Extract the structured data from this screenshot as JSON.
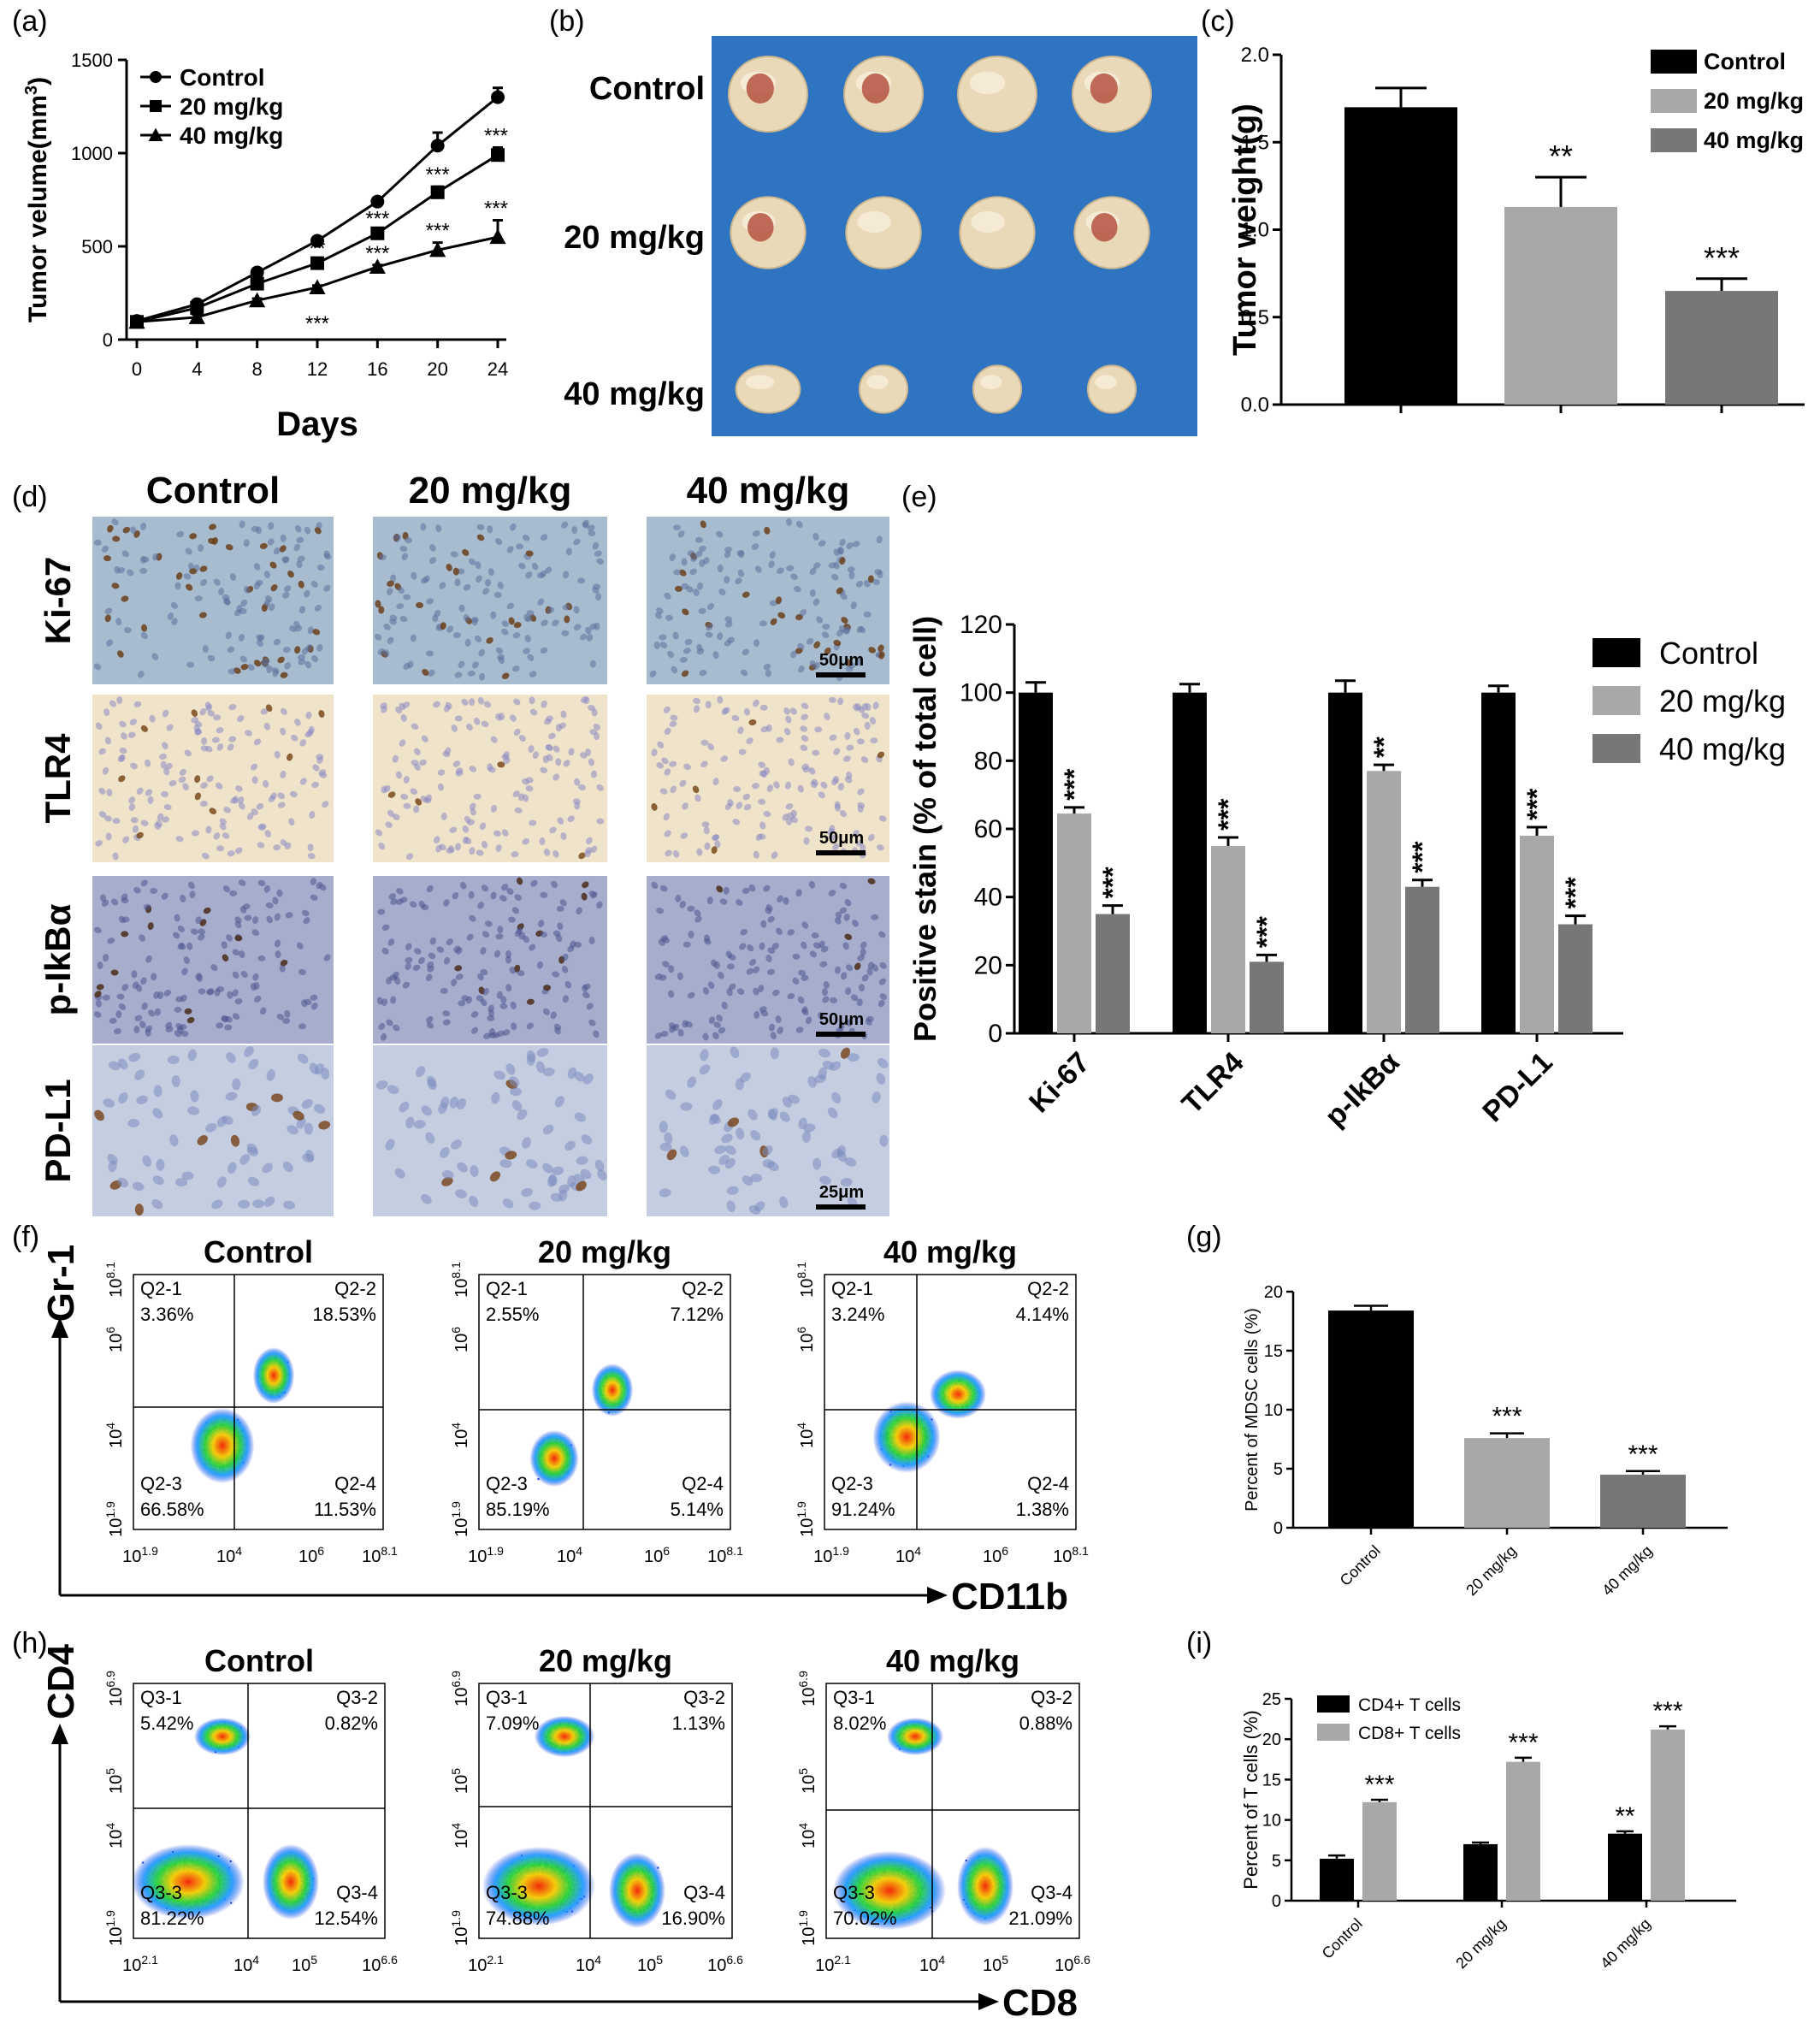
{
  "panel_letters": {
    "a": "(a)",
    "b": "(b)",
    "c": "(c)",
    "d": "(d)",
    "e": "(e)",
    "f": "(f)",
    "g": "(g)",
    "h": "(h)",
    "i": "(i)"
  },
  "colors": {
    "control": "#000000",
    "dose20": "#a8a8a8",
    "dose40": "#777777",
    "photo_bg": "#2f74c0"
  },
  "groups": [
    "Control",
    "20 mg/kg",
    "40 mg/kg"
  ],
  "panel_b": {
    "row_labels": [
      "Control",
      "20 mg/kg",
      "40 mg/kg"
    ]
  },
  "panel_d": {
    "col_labels": [
      "Control",
      "20 mg/kg",
      "40 mg/kg"
    ],
    "row_labels": [
      "Ki-67",
      "TLR4",
      "p-IkBα",
      "PD-L1"
    ],
    "scale_bars": [
      "50μm",
      "50μm",
      "50μm",
      "25μm"
    ]
  },
  "panel_f": {
    "y_axis": "Gr-1",
    "x_axis": "CD11b",
    "titles": [
      "Control",
      "20 mg/kg",
      "40 mg/kg"
    ],
    "x_ticks": [
      {
        "b": "10",
        "e": "1.9"
      },
      {
        "b": "10",
        "e": "4"
      },
      {
        "b": "10",
        "e": "6"
      },
      {
        "b": "10",
        "e": "8.1"
      }
    ],
    "y_ticks": [
      {
        "b": "10",
        "e": "1.9"
      },
      {
        "b": "10",
        "e": "4"
      },
      {
        "b": "10",
        "e": "6"
      },
      {
        "b": "10",
        "e": "8.1"
      }
    ],
    "plots": [
      {
        "q": [
          [
            "Q2-1",
            "3.36%"
          ],
          [
            "Q2-2",
            "18.53%"
          ],
          [
            "Q2-3",
            "66.58%"
          ],
          [
            "Q2-4",
            "11.53%"
          ]
        ]
      },
      {
        "q": [
          [
            "Q2-1",
            "2.55%"
          ],
          [
            "Q2-2",
            "7.12%"
          ],
          [
            "Q2-3",
            "85.19%"
          ],
          [
            "Q2-4",
            "5.14%"
          ]
        ]
      },
      {
        "q": [
          [
            "Q2-1",
            "3.24%"
          ],
          [
            "Q2-2",
            "4.14%"
          ],
          [
            "Q2-3",
            "91.24%"
          ],
          [
            "Q2-4",
            "1.38%"
          ]
        ]
      }
    ]
  },
  "panel_h": {
    "y_axis": "CD4",
    "x_axis": "CD8",
    "titles": [
      "Control",
      "20 mg/kg",
      "40 mg/kg"
    ],
    "x_ticks": [
      {
        "b": "10",
        "e": "2.1"
      },
      {
        "b": "10",
        "e": "4"
      },
      {
        "b": "10",
        "e": "5"
      },
      {
        "b": "10",
        "e": "6.6"
      }
    ],
    "y_ticks": [
      {
        "b": "10",
        "e": "1.9"
      },
      {
        "b": "10",
        "e": "4"
      },
      {
        "b": "10",
        "e": "5"
      },
      {
        "b": "10",
        "e": "6.9"
      }
    ],
    "plots": [
      {
        "q": [
          [
            "Q3-1",
            "5.42%"
          ],
          [
            "Q3-2",
            "0.82%"
          ],
          [
            "Q3-3",
            "81.22%"
          ],
          [
            "Q3-4",
            "12.54%"
          ]
        ]
      },
      {
        "q": [
          [
            "Q3-1",
            "7.09%"
          ],
          [
            "Q3-2",
            "1.13%"
          ],
          [
            "Q3-3",
            "74.88%"
          ],
          [
            "Q3-4",
            "16.90%"
          ]
        ]
      },
      {
        "q": [
          [
            "Q3-1",
            "8.02%"
          ],
          [
            "Q3-2",
            "0.88%"
          ],
          [
            "Q3-3",
            "70.02%"
          ],
          [
            "Q3-4",
            "21.09%"
          ]
        ]
      }
    ]
  },
  "chart_data": [
    {
      "panel": "a",
      "type": "line",
      "xlabel": "Days",
      "ylabel_main": "Tumor velume(mm",
      "ylabel_sup": "3",
      "ylabel_end": ")",
      "x": [
        0,
        4,
        8,
        12,
        16,
        20,
        24
      ],
      "xlim": [
        0,
        24
      ],
      "ylim": [
        0,
        1500
      ],
      "xticks": [
        0,
        4,
        8,
        12,
        16,
        20,
        24
      ],
      "yticks": [
        0,
        500,
        1000,
        1500
      ],
      "legend": "top-left",
      "series": [
        {
          "name": "Control",
          "marker": "circle",
          "values": [
            100,
            190,
            360,
            530,
            740,
            1040,
            1300
          ],
          "errors": [
            5,
            15,
            20,
            15,
            20,
            70,
            50
          ],
          "sig": [
            "",
            "",
            "",
            "",
            "",
            "",
            ""
          ]
        },
        {
          "name": "20 mg/kg",
          "marker": "square",
          "values": [
            95,
            170,
            300,
            410,
            570,
            790,
            990
          ],
          "errors": [
            5,
            10,
            15,
            15,
            15,
            30,
            40
          ],
          "sig": [
            "",
            "",
            "",
            "**",
            "***",
            "***",
            "***"
          ]
        },
        {
          "name": "40 mg/kg",
          "marker": "triangle",
          "values": [
            95,
            120,
            210,
            280,
            390,
            480,
            550
          ],
          "errors": [
            5,
            15,
            10,
            10,
            10,
            40,
            90
          ],
          "sig": [
            "",
            "",
            "",
            "***",
            "***",
            "***",
            "***"
          ]
        }
      ]
    },
    {
      "panel": "c",
      "type": "bar",
      "ylabel": "Tumor weight(g)",
      "ylim": [
        0,
        2.0
      ],
      "yticks": [
        "0.0",
        "0.5",
        "1.0",
        "1.5",
        "2.0"
      ],
      "legend": "top-right",
      "series": [
        {
          "name": "Control",
          "value": 1.7,
          "error": 0.11,
          "sig": ""
        },
        {
          "name": "20 mg/kg",
          "value": 1.13,
          "error": 0.17,
          "sig": "**"
        },
        {
          "name": "40 mg/kg",
          "value": 0.65,
          "error": 0.07,
          "sig": "***"
        }
      ]
    },
    {
      "panel": "e",
      "type": "bar",
      "ylabel": "Positive stain (% of total cell)",
      "categories": [
        "Ki-67",
        "TLR4",
        "p-IkBα",
        "PD-L1"
      ],
      "ylim": [
        0,
        120
      ],
      "yticks": [
        0,
        20,
        40,
        60,
        80,
        100,
        120
      ],
      "legend": "top-right",
      "series": [
        {
          "name": "Control",
          "values": [
            100,
            100,
            100,
            100
          ],
          "errors": [
            3,
            2.5,
            3.5,
            2
          ],
          "sig": [
            "",
            "",
            "",
            ""
          ]
        },
        {
          "name": "20 mg/kg",
          "values": [
            64.5,
            55,
            77,
            58
          ],
          "errors": [
            1.8,
            2.5,
            1.8,
            2.5
          ],
          "sig": [
            "***",
            "***",
            "**",
            "***"
          ]
        },
        {
          "name": "40 mg/kg",
          "values": [
            35,
            21,
            43,
            32
          ],
          "errors": [
            2.5,
            2,
            2,
            2.5
          ],
          "sig": [
            "***",
            "***",
            "***",
            "***"
          ]
        }
      ]
    },
    {
      "panel": "g",
      "type": "bar",
      "ylabel": "Percent of MDSC cells (%)",
      "categories": [
        "Control",
        "20 mg/kg",
        "40 mg/kg"
      ],
      "ylim": [
        0,
        20
      ],
      "yticks": [
        0,
        5,
        10,
        15,
        20
      ],
      "series": [
        {
          "name": "Control",
          "value": 18.4,
          "error": 0.4,
          "sig": ""
        },
        {
          "name": "20 mg/kg",
          "value": 7.6,
          "error": 0.4,
          "sig": "***"
        },
        {
          "name": "40 mg/kg",
          "value": 4.5,
          "error": 0.3,
          "sig": "***"
        }
      ]
    },
    {
      "panel": "i",
      "type": "bar",
      "ylabel": "Percent of T cells (%)",
      "categories": [
        "Control",
        "20 mg/kg",
        "40 mg/kg"
      ],
      "ylim": [
        0,
        25
      ],
      "yticks": [
        0,
        5,
        10,
        15,
        20,
        25
      ],
      "legend": "top-left",
      "series": [
        {
          "name": "CD4+ T cells",
          "values": [
            5.2,
            7.0,
            8.3
          ],
          "errors": [
            0.4,
            0.2,
            0.3
          ],
          "sig": [
            "",
            "",
            "**"
          ]
        },
        {
          "name": "CD8+ T cells",
          "values": [
            12.2,
            17.2,
            21.2
          ],
          "errors": [
            0.3,
            0.5,
            0.4
          ],
          "sig": [
            "***",
            "***",
            "***"
          ]
        }
      ]
    }
  ]
}
